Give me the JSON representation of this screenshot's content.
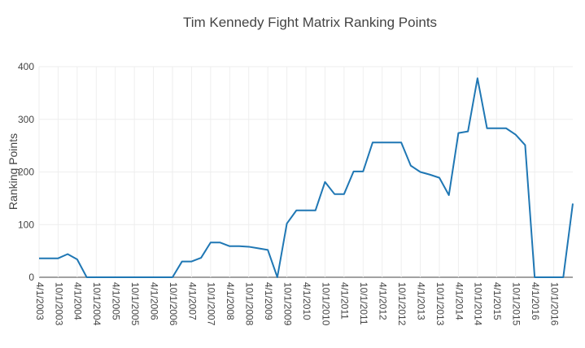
{
  "chart_data": {
    "type": "line",
    "title": "Tim Kennedy Fight Matrix Ranking Points",
    "xlabel": "",
    "ylabel": "Ranking Points",
    "ylim": [
      0,
      400
    ],
    "yticks": [
      "0",
      "100",
      "200",
      "300",
      "400"
    ],
    "xticks": [
      "4/1/2003",
      "10/1/2003",
      "4/1/2004",
      "10/1/2004",
      "4/1/2005",
      "10/1/2005",
      "4/1/2006",
      "10/1/2006",
      "4/1/2007",
      "10/1/2007",
      "4/1/2008",
      "10/1/2008",
      "4/1/2009",
      "10/1/2009",
      "4/1/2010",
      "10/1/2010",
      "4/1/2011",
      "10/1/2011",
      "4/1/2012",
      "10/1/2012",
      "4/1/2013",
      "10/1/2013",
      "4/1/2014",
      "10/1/2014",
      "4/1/2015",
      "10/1/2015",
      "4/1/2016",
      "10/1/2016"
    ],
    "grid": true,
    "legend": "none",
    "colors": {
      "line": "#1f77b4",
      "grid": "#eeeeee",
      "zero": "#444444"
    },
    "series": [
      {
        "values": [
          [
            0,
            36
          ],
          [
            1,
            36
          ],
          [
            2,
            36
          ],
          [
            3,
            44
          ],
          [
            4,
            34
          ],
          [
            5,
            0
          ],
          [
            6,
            0
          ],
          [
            7,
            0
          ],
          [
            8,
            0
          ],
          [
            9,
            0
          ],
          [
            10,
            0
          ],
          [
            11,
            0
          ],
          [
            12,
            0
          ],
          [
            13,
            0
          ],
          [
            14,
            0
          ],
          [
            15,
            30
          ],
          [
            16,
            30
          ],
          [
            17,
            37
          ],
          [
            18,
            66
          ],
          [
            19,
            66
          ],
          [
            20,
            59
          ],
          [
            21,
            59
          ],
          [
            22,
            58
          ],
          [
            23,
            55
          ],
          [
            24,
            52
          ],
          [
            25,
            0
          ],
          [
            26,
            102
          ],
          [
            27,
            127
          ],
          [
            28,
            127
          ],
          [
            29,
            127
          ],
          [
            30,
            181
          ],
          [
            31,
            158
          ],
          [
            32,
            158
          ],
          [
            33,
            201
          ],
          [
            34,
            201
          ],
          [
            35,
            256
          ],
          [
            36,
            256
          ],
          [
            37,
            256
          ],
          [
            38,
            256
          ],
          [
            39,
            212
          ],
          [
            40,
            200
          ],
          [
            41,
            195
          ],
          [
            42,
            189
          ],
          [
            43,
            156
          ],
          [
            44,
            274
          ],
          [
            45,
            277
          ],
          [
            46,
            378
          ],
          [
            47,
            283
          ],
          [
            48,
            283
          ],
          [
            49,
            283
          ],
          [
            50,
            271
          ],
          [
            51,
            251
          ],
          [
            52,
            0
          ],
          [
            53,
            0
          ],
          [
            54,
            0
          ],
          [
            55,
            0
          ],
          [
            56,
            140
          ]
        ]
      }
    ]
  }
}
